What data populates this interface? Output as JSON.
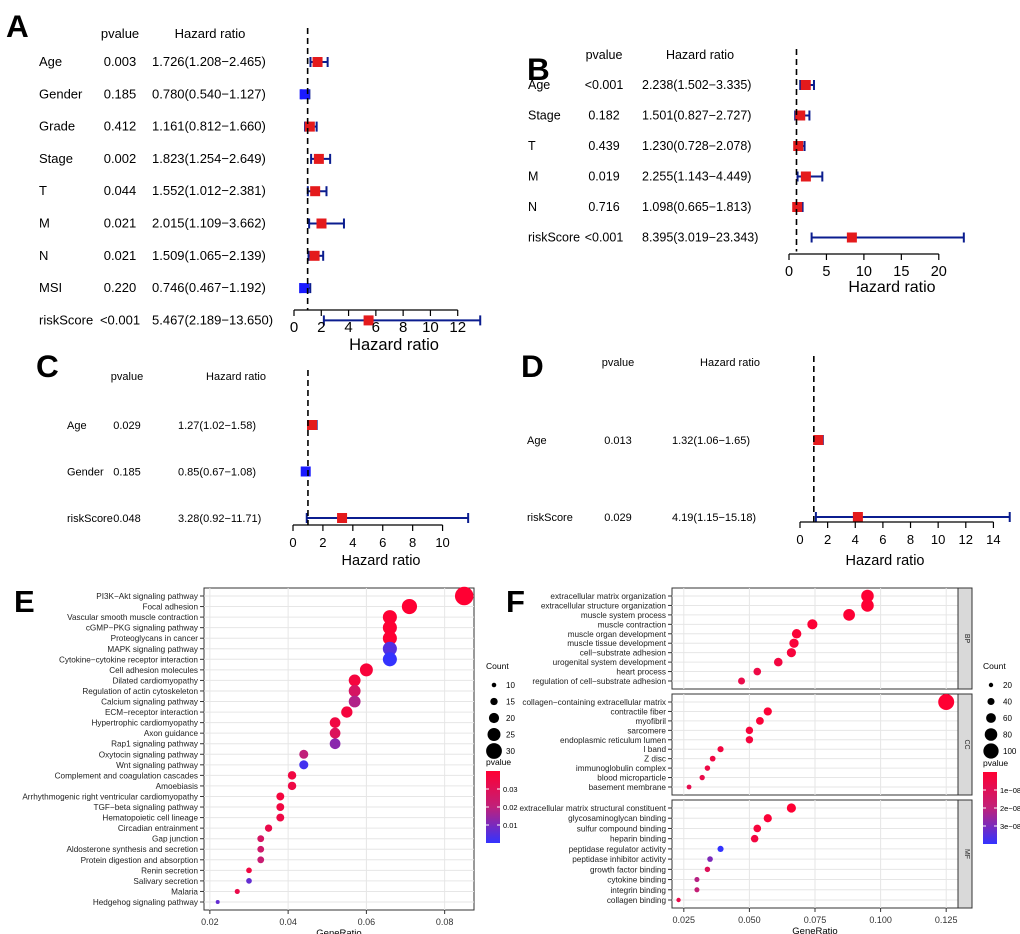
{
  "chart_data": [
    {
      "id": "A",
      "type": "forest",
      "panel_label": "A",
      "col_pvalue": "pvalue",
      "col_hr": "Hazard ratio",
      "xlabel": "Hazard ratio",
      "xlim": [
        0,
        14
      ],
      "xticks": [
        0,
        2,
        4,
        6,
        8,
        10,
        12
      ],
      "ref_line": 1,
      "rows": [
        {
          "label": "Age",
          "pvalue": "0.003",
          "hr_text": "1.726(1.208−2.465)",
          "hr": 1.726,
          "lo": 1.208,
          "hi": 2.465
        },
        {
          "label": "Gender",
          "pvalue": "0.185",
          "hr_text": "0.780(0.540−1.127)",
          "hr": 0.78,
          "lo": 0.54,
          "hi": 1.127
        },
        {
          "label": "Grade",
          "pvalue": "0.412",
          "hr_text": "1.161(0.812−1.660)",
          "hr": 1.161,
          "lo": 0.812,
          "hi": 1.66
        },
        {
          "label": "Stage",
          "pvalue": "0.002",
          "hr_text": "1.823(1.254−2.649)",
          "hr": 1.823,
          "lo": 1.254,
          "hi": 2.649
        },
        {
          "label": "T",
          "pvalue": "0.044",
          "hr_text": "1.552(1.012−2.381)",
          "hr": 1.552,
          "lo": 1.012,
          "hi": 2.381
        },
        {
          "label": "M",
          "pvalue": "0.021",
          "hr_text": "2.015(1.109−3.662)",
          "hr": 2.015,
          "lo": 1.109,
          "hi": 3.662
        },
        {
          "label": "N",
          "pvalue": "0.021",
          "hr_text": "1.509(1.065−2.139)",
          "hr": 1.509,
          "lo": 1.065,
          "hi": 2.139
        },
        {
          "label": "MSI",
          "pvalue": "0.220",
          "hr_text": "0.746(0.467−1.192)",
          "hr": 0.746,
          "lo": 0.467,
          "hi": 1.192
        },
        {
          "label": "riskScore",
          "pvalue": "<0.001",
          "hr_text": "5.467(2.189−13.650)",
          "hr": 5.467,
          "lo": 2.189,
          "hi": 13.65
        }
      ]
    },
    {
      "id": "B",
      "type": "forest",
      "panel_label": "B",
      "col_pvalue": "pvalue",
      "col_hr": "Hazard ratio",
      "xlabel": "Hazard ratio",
      "xlim": [
        0,
        23.5
      ],
      "xticks": [
        0,
        5,
        10,
        15,
        20
      ],
      "ref_line": 1,
      "rows": [
        {
          "label": "Age",
          "pvalue": "<0.001",
          "hr_text": "2.238(1.502−3.335)",
          "hr": 2.238,
          "lo": 1.502,
          "hi": 3.335
        },
        {
          "label": "Stage",
          "pvalue": "0.182",
          "hr_text": "1.501(0.827−2.727)",
          "hr": 1.501,
          "lo": 0.827,
          "hi": 2.727
        },
        {
          "label": "T",
          "pvalue": "0.439",
          "hr_text": "1.230(0.728−2.078)",
          "hr": 1.23,
          "lo": 0.728,
          "hi": 2.078
        },
        {
          "label": "M",
          "pvalue": "0.019",
          "hr_text": "2.255(1.143−4.449)",
          "hr": 2.255,
          "lo": 1.143,
          "hi": 4.449
        },
        {
          "label": "N",
          "pvalue": "0.716",
          "hr_text": "1.098(0.665−1.813)",
          "hr": 1.098,
          "lo": 0.665,
          "hi": 1.813
        },
        {
          "label": "riskScore",
          "pvalue": "<0.001",
          "hr_text": "8.395(3.019−23.343)",
          "hr": 8.395,
          "lo": 3.019,
          "hi": 23.343
        }
      ]
    },
    {
      "id": "C",
      "type": "forest",
      "panel_label": "C",
      "col_pvalue": "pvalue",
      "col_hr": "Hazard ratio",
      "xlabel": "Hazard ratio",
      "xlim": [
        0,
        11.7
      ],
      "xticks": [
        0,
        2,
        4,
        6,
        8,
        10
      ],
      "ref_line": 1,
      "rows": [
        {
          "label": "Age",
          "pvalue": "0.029",
          "hr_text": "1.27(1.02−1.58)",
          "hr": 1.27,
          "lo": 1.02,
          "hi": 1.58
        },
        {
          "label": "Gender",
          "pvalue": "0.185",
          "hr_text": "0.85(0.67−1.08)",
          "hr": 0.85,
          "lo": 0.67,
          "hi": 1.08
        },
        {
          "label": "riskScore",
          "pvalue": "0.048",
          "hr_text": "3.28(0.92−11.71)",
          "hr": 3.28,
          "lo": 0.92,
          "hi": 11.71
        }
      ]
    },
    {
      "id": "D",
      "type": "forest",
      "panel_label": "D",
      "col_pvalue": "pvalue",
      "col_hr": "Hazard ratio",
      "xlabel": "Hazard ratio",
      "xlim": [
        0,
        15.2
      ],
      "xticks": [
        0,
        2,
        4,
        6,
        8,
        10,
        12,
        14
      ],
      "ref_line": 1,
      "rows": [
        {
          "label": "Age",
          "pvalue": "0.013",
          "hr_text": "1.32(1.06−1.65)",
          "hr": 1.32,
          "lo": 1.06,
          "hi": 1.65
        },
        {
          "label": "riskScore",
          "pvalue": "0.029",
          "hr_text": "4.19(1.15−15.18)",
          "hr": 4.19,
          "lo": 1.15,
          "hi": 15.18
        }
      ]
    },
    {
      "id": "E",
      "type": "scatter",
      "panel_label": "E",
      "xlabel": "GeneRatio",
      "xlim": [
        0.0185,
        0.0875
      ],
      "xticks": [
        0.02,
        0.04,
        0.06,
        0.08
      ],
      "xtick_labels": [
        "0.02",
        "0.04",
        "0.06",
        "0.08"
      ],
      "count_legend": {
        "title": "Count",
        "levels": [
          10,
          15,
          20,
          25,
          30
        ],
        "labels": [
          "10",
          "15",
          "20",
          "25",
          "30"
        ]
      },
      "pvalue_legend": {
        "title": "pvalue",
        "labels": [
          "0.03",
          "0.02",
          "0.01"
        ]
      },
      "points": [
        {
          "term": "PI3K−Akt signaling pathway",
          "ratio": 0.085,
          "count": 35,
          "p": 0.0001
        },
        {
          "term": "Focal adhesion",
          "ratio": 0.071,
          "count": 29,
          "p": 0.0002
        },
        {
          "term": "Vascular smooth muscle contraction",
          "ratio": 0.066,
          "count": 27,
          "p": 0.0003
        },
        {
          "term": "cGMP−PKG signaling pathway",
          "ratio": 0.066,
          "count": 27,
          "p": 0.0004
        },
        {
          "term": "Proteoglycans in cancer",
          "ratio": 0.066,
          "count": 27,
          "p": 0.0005
        },
        {
          "term": "MAPK signaling pathway",
          "ratio": 0.066,
          "count": 27,
          "p": 0.032
        },
        {
          "term": "Cytokine−cytokine receptor interaction",
          "ratio": 0.066,
          "count": 27,
          "p": 0.036
        },
        {
          "term": "Cell adhesion molecules",
          "ratio": 0.06,
          "count": 25,
          "p": 0.002
        },
        {
          "term": "Dilated cardiomyopathy",
          "ratio": 0.057,
          "count": 23,
          "p": 0.003
        },
        {
          "term": "Regulation of actin cytoskeleton",
          "ratio": 0.057,
          "count": 23,
          "p": 0.012
        },
        {
          "term": "Calcium signaling pathway",
          "ratio": 0.057,
          "count": 23,
          "p": 0.02
        },
        {
          "term": "ECM−receptor interaction",
          "ratio": 0.055,
          "count": 22,
          "p": 0.003
        },
        {
          "term": "Hypertrophic cardiomyopathy",
          "ratio": 0.052,
          "count": 21,
          "p": 0.004
        },
        {
          "term": "Axon guidance",
          "ratio": 0.052,
          "count": 21,
          "p": 0.01
        },
        {
          "term": "Rap1 signaling pathway",
          "ratio": 0.052,
          "count": 21,
          "p": 0.025
        },
        {
          "term": "Oxytocin signaling pathway",
          "ratio": 0.044,
          "count": 18,
          "p": 0.018
        },
        {
          "term": "Wnt signaling pathway",
          "ratio": 0.044,
          "count": 18,
          "p": 0.034
        },
        {
          "term": "Complement and coagulation cascades",
          "ratio": 0.041,
          "count": 17,
          "p": 0.004
        },
        {
          "term": "Amoebiasis",
          "ratio": 0.041,
          "count": 17,
          "p": 0.005
        },
        {
          "term": "Arrhythmogenic right ventricular cardiomyopathy",
          "ratio": 0.038,
          "count": 16,
          "p": 0.003
        },
        {
          "term": "TGF−beta signaling pathway",
          "ratio": 0.038,
          "count": 16,
          "p": 0.004
        },
        {
          "term": "Hematopoietic cell lineage",
          "ratio": 0.038,
          "count": 16,
          "p": 0.005
        },
        {
          "term": "Circadian entrainment",
          "ratio": 0.035,
          "count": 15,
          "p": 0.006
        },
        {
          "term": "Gap junction",
          "ratio": 0.033,
          "count": 14,
          "p": 0.012
        },
        {
          "term": "Aldosterone synthesis and secretion",
          "ratio": 0.033,
          "count": 14,
          "p": 0.014
        },
        {
          "term": "Protein digestion and absorption",
          "ratio": 0.033,
          "count": 14,
          "p": 0.016
        },
        {
          "term": "Renin secretion",
          "ratio": 0.03,
          "count": 12,
          "p": 0.004
        },
        {
          "term": "Salivary secretion",
          "ratio": 0.03,
          "count": 12,
          "p": 0.03
        },
        {
          "term": "Malaria",
          "ratio": 0.027,
          "count": 11,
          "p": 0.006
        },
        {
          "term": "Hedgehog signaling pathway",
          "ratio": 0.022,
          "count": 9,
          "p": 0.03
        }
      ]
    },
    {
      "id": "F",
      "type": "scatter",
      "panel_label": "F",
      "xlabel": "GeneRatio",
      "xlim": [
        0.0205,
        0.1295
      ],
      "xticks": [
        0.025,
        0.05,
        0.075,
        0.1,
        0.125
      ],
      "xtick_labels": [
        "0.025",
        "0.050",
        "0.075",
        "0.100",
        "0.125"
      ],
      "count_legend": {
        "title": "Count",
        "levels": [
          20,
          40,
          60,
          80,
          100
        ],
        "labels": [
          "20",
          "40",
          "60",
          "80",
          "100"
        ]
      },
      "pvalue_legend": {
        "title": "pvalue",
        "labels": [
          "1e−08",
          "2e−08",
          "3e−08"
        ]
      },
      "facets": [
        {
          "name": "BP",
          "points": [
            {
              "term": "extracellular matrix organization",
              "ratio": 0.095,
              "count": 80,
              "p": 2e-10
            },
            {
              "term": "extracellular structure organization",
              "ratio": 0.095,
              "count": 80,
              "p": 2e-10
            },
            {
              "term": "muscle system process",
              "ratio": 0.088,
              "count": 74,
              "p": 4e-10
            },
            {
              "term": "muscle contraction",
              "ratio": 0.074,
              "count": 62,
              "p": 6e-10
            },
            {
              "term": "muscle organ development",
              "ratio": 0.068,
              "count": 57,
              "p": 1e-09
            },
            {
              "term": "muscle tissue development",
              "ratio": 0.067,
              "count": 56,
              "p": 1.5e-09
            },
            {
              "term": "cell−substrate adhesion",
              "ratio": 0.066,
              "count": 55,
              "p": 2e-09
            },
            {
              "term": "urogenital system development",
              "ratio": 0.061,
              "count": 51,
              "p": 3e-09
            },
            {
              "term": "heart process",
              "ratio": 0.053,
              "count": 44,
              "p": 4e-09
            },
            {
              "term": "regulation of cell−substrate adhesion",
              "ratio": 0.047,
              "count": 39,
              "p": 5e-09
            }
          ]
        },
        {
          "name": "CC",
          "points": [
            {
              "term": "collagen−containing extracellular matrix",
              "ratio": 0.125,
              "count": 105,
              "p": 1e-12
            },
            {
              "term": "contractile fiber",
              "ratio": 0.057,
              "count": 48,
              "p": 8e-10
            },
            {
              "term": "myofibril",
              "ratio": 0.054,
              "count": 45,
              "p": 1.2e-09
            },
            {
              "term": "sarcomere",
              "ratio": 0.05,
              "count": 42,
              "p": 2e-09
            },
            {
              "term": "endoplasmic reticulum lumen",
              "ratio": 0.05,
              "count": 42,
              "p": 2.5e-09
            },
            {
              "term": "I band",
              "ratio": 0.039,
              "count": 33,
              "p": 3e-09
            },
            {
              "term": "Z disc",
              "ratio": 0.036,
              "count": 30,
              "p": 3.5e-09
            },
            {
              "term": "immunoglobulin complex",
              "ratio": 0.034,
              "count": 28,
              "p": 4e-09
            },
            {
              "term": "blood microparticle",
              "ratio": 0.032,
              "count": 27,
              "p": 5e-09
            },
            {
              "term": "basement membrane",
              "ratio": 0.027,
              "count": 23,
              "p": 6e-09
            }
          ]
        },
        {
          "name": "MF",
          "points": [
            {
              "term": "extracellular matrix structural constituent",
              "ratio": 0.066,
              "count": 55,
              "p": 1e-12
            },
            {
              "term": "glycosaminoglycan binding",
              "ratio": 0.057,
              "count": 48,
              "p": 1e-09
            },
            {
              "term": "sulfur compound binding",
              "ratio": 0.053,
              "count": 44,
              "p": 2e-09
            },
            {
              "term": "heparin binding",
              "ratio": 0.052,
              "count": 43,
              "p": 3e-09
            },
            {
              "term": "peptidase regulator activity",
              "ratio": 0.039,
              "count": 33,
              "p": 3e-08
            },
            {
              "term": "peptidase inhibitor activity",
              "ratio": 0.035,
              "count": 29,
              "p": 2.2e-08
            },
            {
              "term": "growth factor binding",
              "ratio": 0.034,
              "count": 28,
              "p": 8e-09
            },
            {
              "term": "cytokine binding",
              "ratio": 0.03,
              "count": 25,
              "p": 1.6e-08
            },
            {
              "term": "integrin binding",
              "ratio": 0.03,
              "count": 25,
              "p": 1.4e-08
            },
            {
              "term": "collagen binding",
              "ratio": 0.023,
              "count": 20,
              "p": 5e-09
            }
          ]
        }
      ]
    }
  ],
  "colors": {
    "marker_up": "#e41a1c",
    "marker_down": "#1a1aff",
    "ci_line": "#0b1d8f",
    "grad_low": "#ff0033",
    "grad_high": "#3333ff",
    "grid_bg": "#ffffff",
    "grid_line": "#e6e6e6",
    "strip_bg": "#d9d9d9"
  }
}
